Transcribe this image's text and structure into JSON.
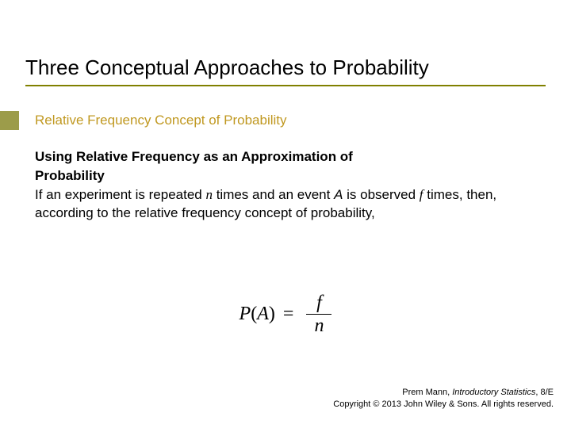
{
  "colors": {
    "accent_olive": "#808000",
    "accent_square": "#9c9c4a",
    "subtitle_gold": "#c09820",
    "text": "#000000",
    "background": "#ffffff"
  },
  "title": "Three Conceptual Approaches to Probability",
  "subtitle": "Relative Frequency Concept of Probability",
  "heading_part1": "Using Relative Frequency as an Approximation of",
  "heading_part2": "Probability",
  "body_seg1": "If an experiment is repeated ",
  "body_n": "n",
  "body_seg2": " times and an event ",
  "body_A": "A",
  "body_seg3": " is observed ",
  "body_f": "f",
  "body_seg4": " times, then, according to the relative frequency concept of probability,",
  "formula": {
    "lhs": "P(A) = ",
    "numerator": "f",
    "denominator": "n"
  },
  "footer": {
    "author": "Prem Mann, ",
    "book": "Introductory Statistics",
    "edition": ", 8/E",
    "copyright": "Copyright © 2013 John Wiley & Sons. All rights reserved."
  }
}
